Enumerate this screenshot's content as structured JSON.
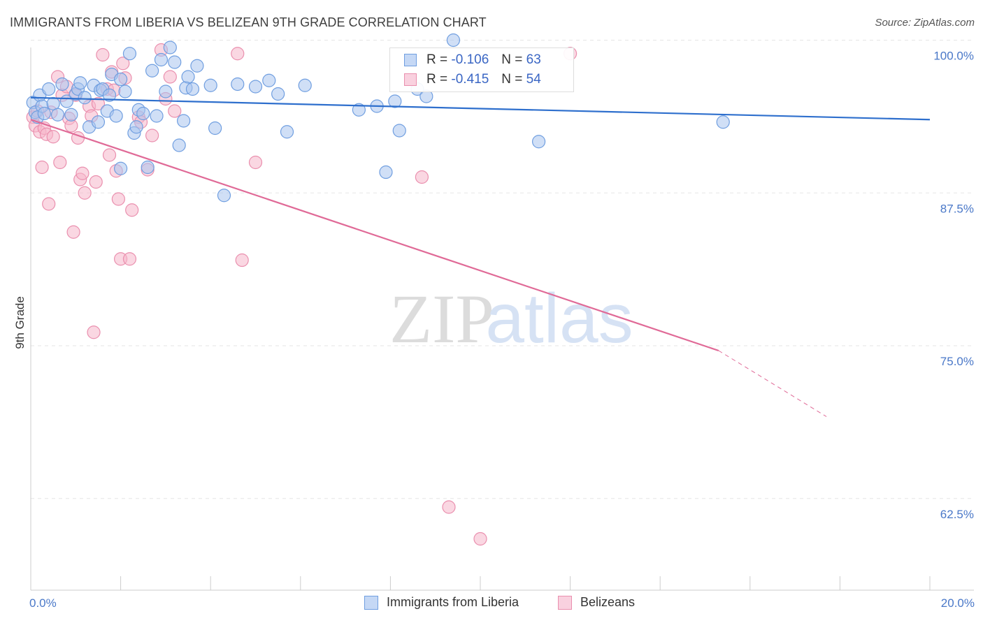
{
  "title": "IMMIGRANTS FROM LIBERIA VS BELIZEAN 9TH GRADE CORRELATION CHART",
  "source": "Source: ZipAtlas.com",
  "watermark": {
    "zip": "ZIP",
    "atlas": "atlas"
  },
  "legend_stats": [
    {
      "r_label": "R =",
      "r_value": "-0.106",
      "n_label": "N =",
      "n_value": "63"
    },
    {
      "r_label": "R =",
      "r_value": "-0.415",
      "n_label": "N =",
      "n_value": "54"
    }
  ],
  "colors": {
    "blue_fill": "#a9c4ee",
    "blue_stroke": "#6f9ee0",
    "blue_line": "#2e6fcd",
    "pink_fill": "#f5b7cb",
    "pink_stroke": "#ea8fae",
    "pink_line": "#e06a97",
    "grid": "#e5e5e5",
    "axis_text": "#4a78c8"
  },
  "chart_data": {
    "type": "scatter",
    "title": "IMMIGRANTS FROM LIBERIA VS BELIZEAN 9TH GRADE CORRELATION CHART",
    "xlabel": "",
    "ylabel": "9th Grade",
    "xlim": [
      0,
      20
    ],
    "ylim": [
      55,
      101
    ],
    "x_tick_labels": [
      "0.0%",
      "20.0%"
    ],
    "y_ticks": [
      {
        "value": 100,
        "label": "100.0%"
      },
      {
        "value": 87.5,
        "label": "87.5%"
      },
      {
        "value": 75,
        "label": "75.0%"
      },
      {
        "value": 62.5,
        "label": "62.5%"
      }
    ],
    "grid": true,
    "legend_position": "bottom",
    "series": [
      {
        "name": "Immigrants from Liberia",
        "color": "#a9c4ee",
        "r": -0.106,
        "n": 63,
        "trend": {
          "x": [
            0,
            20
          ],
          "y": [
            95.3,
            93.5
          ]
        },
        "points": [
          [
            0.05,
            94.9
          ],
          [
            0.1,
            94.1
          ],
          [
            0.15,
            93.7
          ],
          [
            0.2,
            95.5
          ],
          [
            0.25,
            94.6
          ],
          [
            0.3,
            94.0
          ],
          [
            0.4,
            96.0
          ],
          [
            0.5,
            94.8
          ],
          [
            0.6,
            93.9
          ],
          [
            0.7,
            96.4
          ],
          [
            0.8,
            95.0
          ],
          [
            0.9,
            93.9
          ],
          [
            1.0,
            95.6
          ],
          [
            1.05,
            96.0
          ],
          [
            1.1,
            96.5
          ],
          [
            1.2,
            95.3
          ],
          [
            1.3,
            92.9
          ],
          [
            1.4,
            96.3
          ],
          [
            1.5,
            93.3
          ],
          [
            1.55,
            95.9
          ],
          [
            1.6,
            96.0
          ],
          [
            1.7,
            94.2
          ],
          [
            1.75,
            95.5
          ],
          [
            1.8,
            97.2
          ],
          [
            1.9,
            93.8
          ],
          [
            2.0,
            96.8
          ],
          [
            2.0,
            89.5
          ],
          [
            2.1,
            95.8
          ],
          [
            2.2,
            98.9
          ],
          [
            2.3,
            92.4
          ],
          [
            2.35,
            92.9
          ],
          [
            2.4,
            94.3
          ],
          [
            2.5,
            94.0
          ],
          [
            2.6,
            89.6
          ],
          [
            2.7,
            97.5
          ],
          [
            2.8,
            93.8
          ],
          [
            2.9,
            98.4
          ],
          [
            3.0,
            95.8
          ],
          [
            3.1,
            99.4
          ],
          [
            3.2,
            98.2
          ],
          [
            3.3,
            91.4
          ],
          [
            3.4,
            93.4
          ],
          [
            3.45,
            96.1
          ],
          [
            3.5,
            97.0
          ],
          [
            3.6,
            96.0
          ],
          [
            3.7,
            97.9
          ],
          [
            4.0,
            96.3
          ],
          [
            4.1,
            92.8
          ],
          [
            4.6,
            96.4
          ],
          [
            4.3,
            87.3
          ],
          [
            5.0,
            96.2
          ],
          [
            5.3,
            96.7
          ],
          [
            5.5,
            95.6
          ],
          [
            5.7,
            92.5
          ],
          [
            6.1,
            96.3
          ],
          [
            7.3,
            94.3
          ],
          [
            7.7,
            94.6
          ],
          [
            7.9,
            89.2
          ],
          [
            8.1,
            95.0
          ],
          [
            8.2,
            92.6
          ],
          [
            8.6,
            96.0
          ],
          [
            8.8,
            95.4
          ],
          [
            11.3,
            91.7
          ],
          [
            15.4,
            93.3
          ],
          [
            9.4,
            100.0
          ]
        ]
      },
      {
        "name": "Belizeans",
        "color": "#f5b7cb",
        "r": -0.415,
        "n": 54,
        "trend": {
          "x": [
            0,
            15.3
          ],
          "y": [
            93.5,
            74.6
          ]
        },
        "trend_dashed": {
          "x": [
            15.3,
            17.7
          ],
          "y": [
            74.6,
            69.2
          ]
        },
        "points": [
          [
            0.05,
            93.7
          ],
          [
            0.1,
            93.0
          ],
          [
            0.15,
            94.2
          ],
          [
            0.2,
            92.5
          ],
          [
            0.25,
            89.6
          ],
          [
            0.3,
            92.8
          ],
          [
            0.35,
            92.3
          ],
          [
            0.4,
            86.6
          ],
          [
            0.45,
            94.1
          ],
          [
            0.5,
            92.1
          ],
          [
            0.6,
            97.0
          ],
          [
            0.65,
            90.0
          ],
          [
            0.7,
            95.5
          ],
          [
            0.8,
            96.2
          ],
          [
            0.85,
            93.6
          ],
          [
            0.9,
            93.0
          ],
          [
            0.95,
            84.3
          ],
          [
            1.0,
            95.5
          ],
          [
            1.05,
            92.0
          ],
          [
            1.1,
            88.6
          ],
          [
            1.15,
            89.1
          ],
          [
            1.2,
            87.5
          ],
          [
            1.3,
            94.6
          ],
          [
            1.35,
            93.8
          ],
          [
            1.4,
            76.1
          ],
          [
            1.45,
            88.4
          ],
          [
            1.5,
            94.8
          ],
          [
            1.6,
            98.8
          ],
          [
            1.7,
            96.0
          ],
          [
            1.75,
            90.6
          ],
          [
            1.8,
            97.4
          ],
          [
            1.85,
            95.9
          ],
          [
            1.9,
            89.3
          ],
          [
            1.95,
            87.0
          ],
          [
            2.0,
            82.1
          ],
          [
            2.05,
            98.1
          ],
          [
            2.1,
            96.9
          ],
          [
            2.2,
            82.1
          ],
          [
            2.25,
            86.1
          ],
          [
            2.4,
            93.7
          ],
          [
            2.45,
            93.3
          ],
          [
            2.6,
            89.4
          ],
          [
            2.7,
            92.2
          ],
          [
            2.9,
            99.2
          ],
          [
            3.0,
            95.2
          ],
          [
            3.1,
            97.0
          ],
          [
            3.2,
            94.2
          ],
          [
            4.6,
            98.9
          ],
          [
            4.7,
            82.0
          ],
          [
            5.0,
            90.0
          ],
          [
            8.7,
            88.8
          ],
          [
            9.3,
            61.8
          ],
          [
            10.0,
            59.2
          ],
          [
            12.0,
            98.9
          ]
        ]
      }
    ]
  }
}
